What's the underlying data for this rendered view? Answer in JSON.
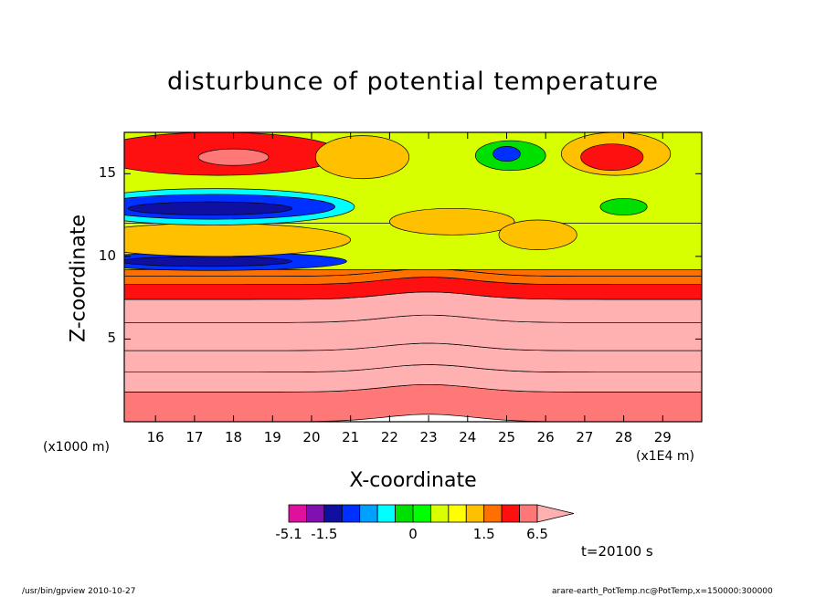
{
  "chart_data": {
    "type": "heatmap",
    "title": "disturbunce of potential temperature",
    "xlabel": "X-coordinate",
    "ylabel": "Z-coordinate",
    "x_unit": "(x1E4 m)",
    "y_unit": "(x1000 m)",
    "xlim": [
      15.2,
      30.0
    ],
    "ylim": [
      0,
      17.5
    ],
    "x_ticks": [
      16,
      17,
      18,
      19,
      20,
      21,
      22,
      23,
      24,
      25,
      26,
      27,
      28,
      29
    ],
    "x_tick_labels": [
      "16",
      "17",
      "18",
      "19",
      "20",
      "21",
      "22",
      "23",
      "24",
      "25",
      "26",
      "27",
      "28",
      "29"
    ],
    "y_ticks": [
      5,
      10,
      15
    ],
    "y_tick_labels": [
      "5",
      "10",
      "15"
    ],
    "time_label": "t=20100 s",
    "colorbar": {
      "levels": [
        -5.1,
        -3.1,
        -1.5,
        -1.2,
        -0.9,
        -0.6,
        -0.3,
        0,
        0.3,
        0.6,
        0.9,
        1.5,
        3.1,
        4.7,
        6.5
      ],
      "tick_labels": [
        "-5.1",
        "-1.5",
        "0",
        "1.5",
        "6.5"
      ],
      "tick_values": [
        -5.1,
        -1.5,
        0,
        1.5,
        6.5
      ],
      "colors": [
        "#e0109e",
        "#8010b0",
        "#1010a0",
        "#0030ff",
        "#00a0ff",
        "#00ffff",
        "#00e000",
        "#00ff00",
        "#d8ff00",
        "#ffff00",
        "#ffc000",
        "#ff7000",
        "#ff1010",
        "#ff7878",
        "#ffb0b0"
      ]
    },
    "bands": [
      {
        "z0": 0.0,
        "z1": 1.8,
        "value": 3.5
      },
      {
        "z0": 1.8,
        "z1": 3.0,
        "value": 5.5
      },
      {
        "z0": 3.0,
        "z1": 4.3,
        "value": 5.0
      },
      {
        "z0": 4.3,
        "z1": 6.0,
        "value": 6.0
      },
      {
        "z0": 6.0,
        "z1": 7.4,
        "value": 5.0
      },
      {
        "z0": 7.4,
        "z1": 8.3,
        "value": 2.5
      },
      {
        "z0": 8.3,
        "z1": 8.8,
        "value": 1.2
      },
      {
        "z0": 8.8,
        "z1": 9.2,
        "value": 0.9
      },
      {
        "z0": 9.2,
        "z1": 12.0,
        "value": 0.2
      },
      {
        "z0": 12.0,
        "z1": 17.5,
        "value": 0.2
      }
    ],
    "features": [
      {
        "x": 17.5,
        "z": 9.7,
        "rx": 3.4,
        "rz": 0.55,
        "value": -1.4
      },
      {
        "x": 17.3,
        "z": 9.7,
        "rx": 2.2,
        "rz": 0.3,
        "value": -2.0
      },
      {
        "x": 17.5,
        "z": 11.0,
        "rx": 3.5,
        "rz": 1.0,
        "value": 0.7
      },
      {
        "x": 17.5,
        "z": 13.0,
        "rx": 3.6,
        "rz": 1.1,
        "value": -0.9
      },
      {
        "x": 17.5,
        "z": 13.0,
        "rx": 3.1,
        "rz": 0.75,
        "value": -1.4
      },
      {
        "x": 17.4,
        "z": 12.9,
        "rx": 2.1,
        "rz": 0.4,
        "value": -3.0
      },
      {
        "x": 17.6,
        "z": 16.2,
        "rx": 3.2,
        "rz": 1.3,
        "value": 1.8
      },
      {
        "x": 18.0,
        "z": 16.0,
        "rx": 0.9,
        "rz": 0.5,
        "value": 4.0
      },
      {
        "x": 23.6,
        "z": 12.1,
        "rx": 1.6,
        "rz": 0.8,
        "value": 0.7
      },
      {
        "x": 25.8,
        "z": 11.3,
        "rx": 1.0,
        "rz": 0.9,
        "value": 0.7
      },
      {
        "x": 25.1,
        "z": 16.1,
        "rx": 0.9,
        "rz": 0.9,
        "value": -0.4
      },
      {
        "x": 25.0,
        "z": 16.2,
        "rx": 0.35,
        "rz": 0.45,
        "value": -1.4
      },
      {
        "x": 27.8,
        "z": 16.2,
        "rx": 1.4,
        "rz": 1.3,
        "value": 0.7
      },
      {
        "x": 27.7,
        "z": 16.0,
        "rx": 0.8,
        "rz": 0.8,
        "value": 1.6
      },
      {
        "x": 28.0,
        "z": 13.0,
        "rx": 0.6,
        "rz": 0.5,
        "value": -0.4
      },
      {
        "x": 21.3,
        "z": 16.0,
        "rx": 1.2,
        "rz": 1.3,
        "value": 0.7
      }
    ]
  },
  "footer": {
    "left": "/usr/bin/gpview   2010-10-27",
    "right": "arare-earth_PotTemp.nc@PotTemp,x=150000:300000"
  }
}
